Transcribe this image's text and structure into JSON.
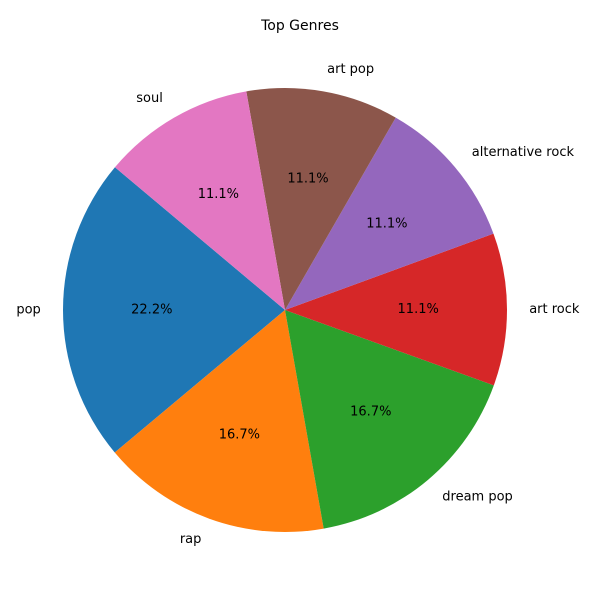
{
  "chart_data": {
    "type": "pie",
    "title": "Top Genres",
    "start_angle_deg": 140,
    "direction": "counterclockwise",
    "slices": [
      {
        "label": "pop",
        "value": 22.2,
        "pct_label": "22.2%",
        "color": "#1f77b4"
      },
      {
        "label": "rap",
        "value": 16.7,
        "pct_label": "16.7%",
        "color": "#ff7f0e"
      },
      {
        "label": "dream pop",
        "value": 16.7,
        "pct_label": "16.7%",
        "color": "#2ca02c"
      },
      {
        "label": "art rock",
        "value": 11.1,
        "pct_label": "11.1%",
        "color": "#d62728"
      },
      {
        "label": "alternative rock",
        "value": 11.1,
        "pct_label": "11.1%",
        "color": "#9467bd"
      },
      {
        "label": "art pop",
        "value": 11.1,
        "pct_label": "11.1%",
        "color": "#8c564b"
      },
      {
        "label": "soul",
        "value": 11.1,
        "pct_label": "11.1%",
        "color": "#e377c2"
      }
    ]
  }
}
